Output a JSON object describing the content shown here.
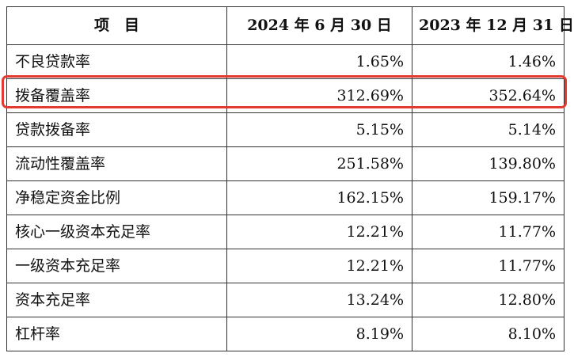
{
  "table": {
    "headers": [
      "项　目",
      "2024 年 6 月 30 日",
      "2023 年 12 月 31 日"
    ],
    "rows": [
      {
        "label": "不良贷款率",
        "v2024": "1.65%",
        "v2023": "1.46%"
      },
      {
        "label": "拨备覆盖率",
        "v2024": "312.69%",
        "v2023": "352.64%"
      },
      {
        "label": "贷款拨备率",
        "v2024": "5.15%",
        "v2023": "5.14%"
      },
      {
        "label": "流动性覆盖率",
        "v2024": "251.58%",
        "v2023": "139.80%"
      },
      {
        "label": "净稳定资金比例",
        "v2024": "162.15%",
        "v2023": "159.17%"
      },
      {
        "label": "核心一级资本充足率",
        "v2024": "12.21%",
        "v2023": "11.77%"
      },
      {
        "label": "一级资本充足率",
        "v2024": "12.21%",
        "v2023": "11.77%"
      },
      {
        "label": "资本充足率",
        "v2024": "13.24%",
        "v2023": "12.80%"
      },
      {
        "label": "杠杆率",
        "v2024": "8.19%",
        "v2023": "8.10%"
      }
    ]
  },
  "highlight": {
    "color": "#e23a30",
    "row": "拨备覆盖率"
  }
}
